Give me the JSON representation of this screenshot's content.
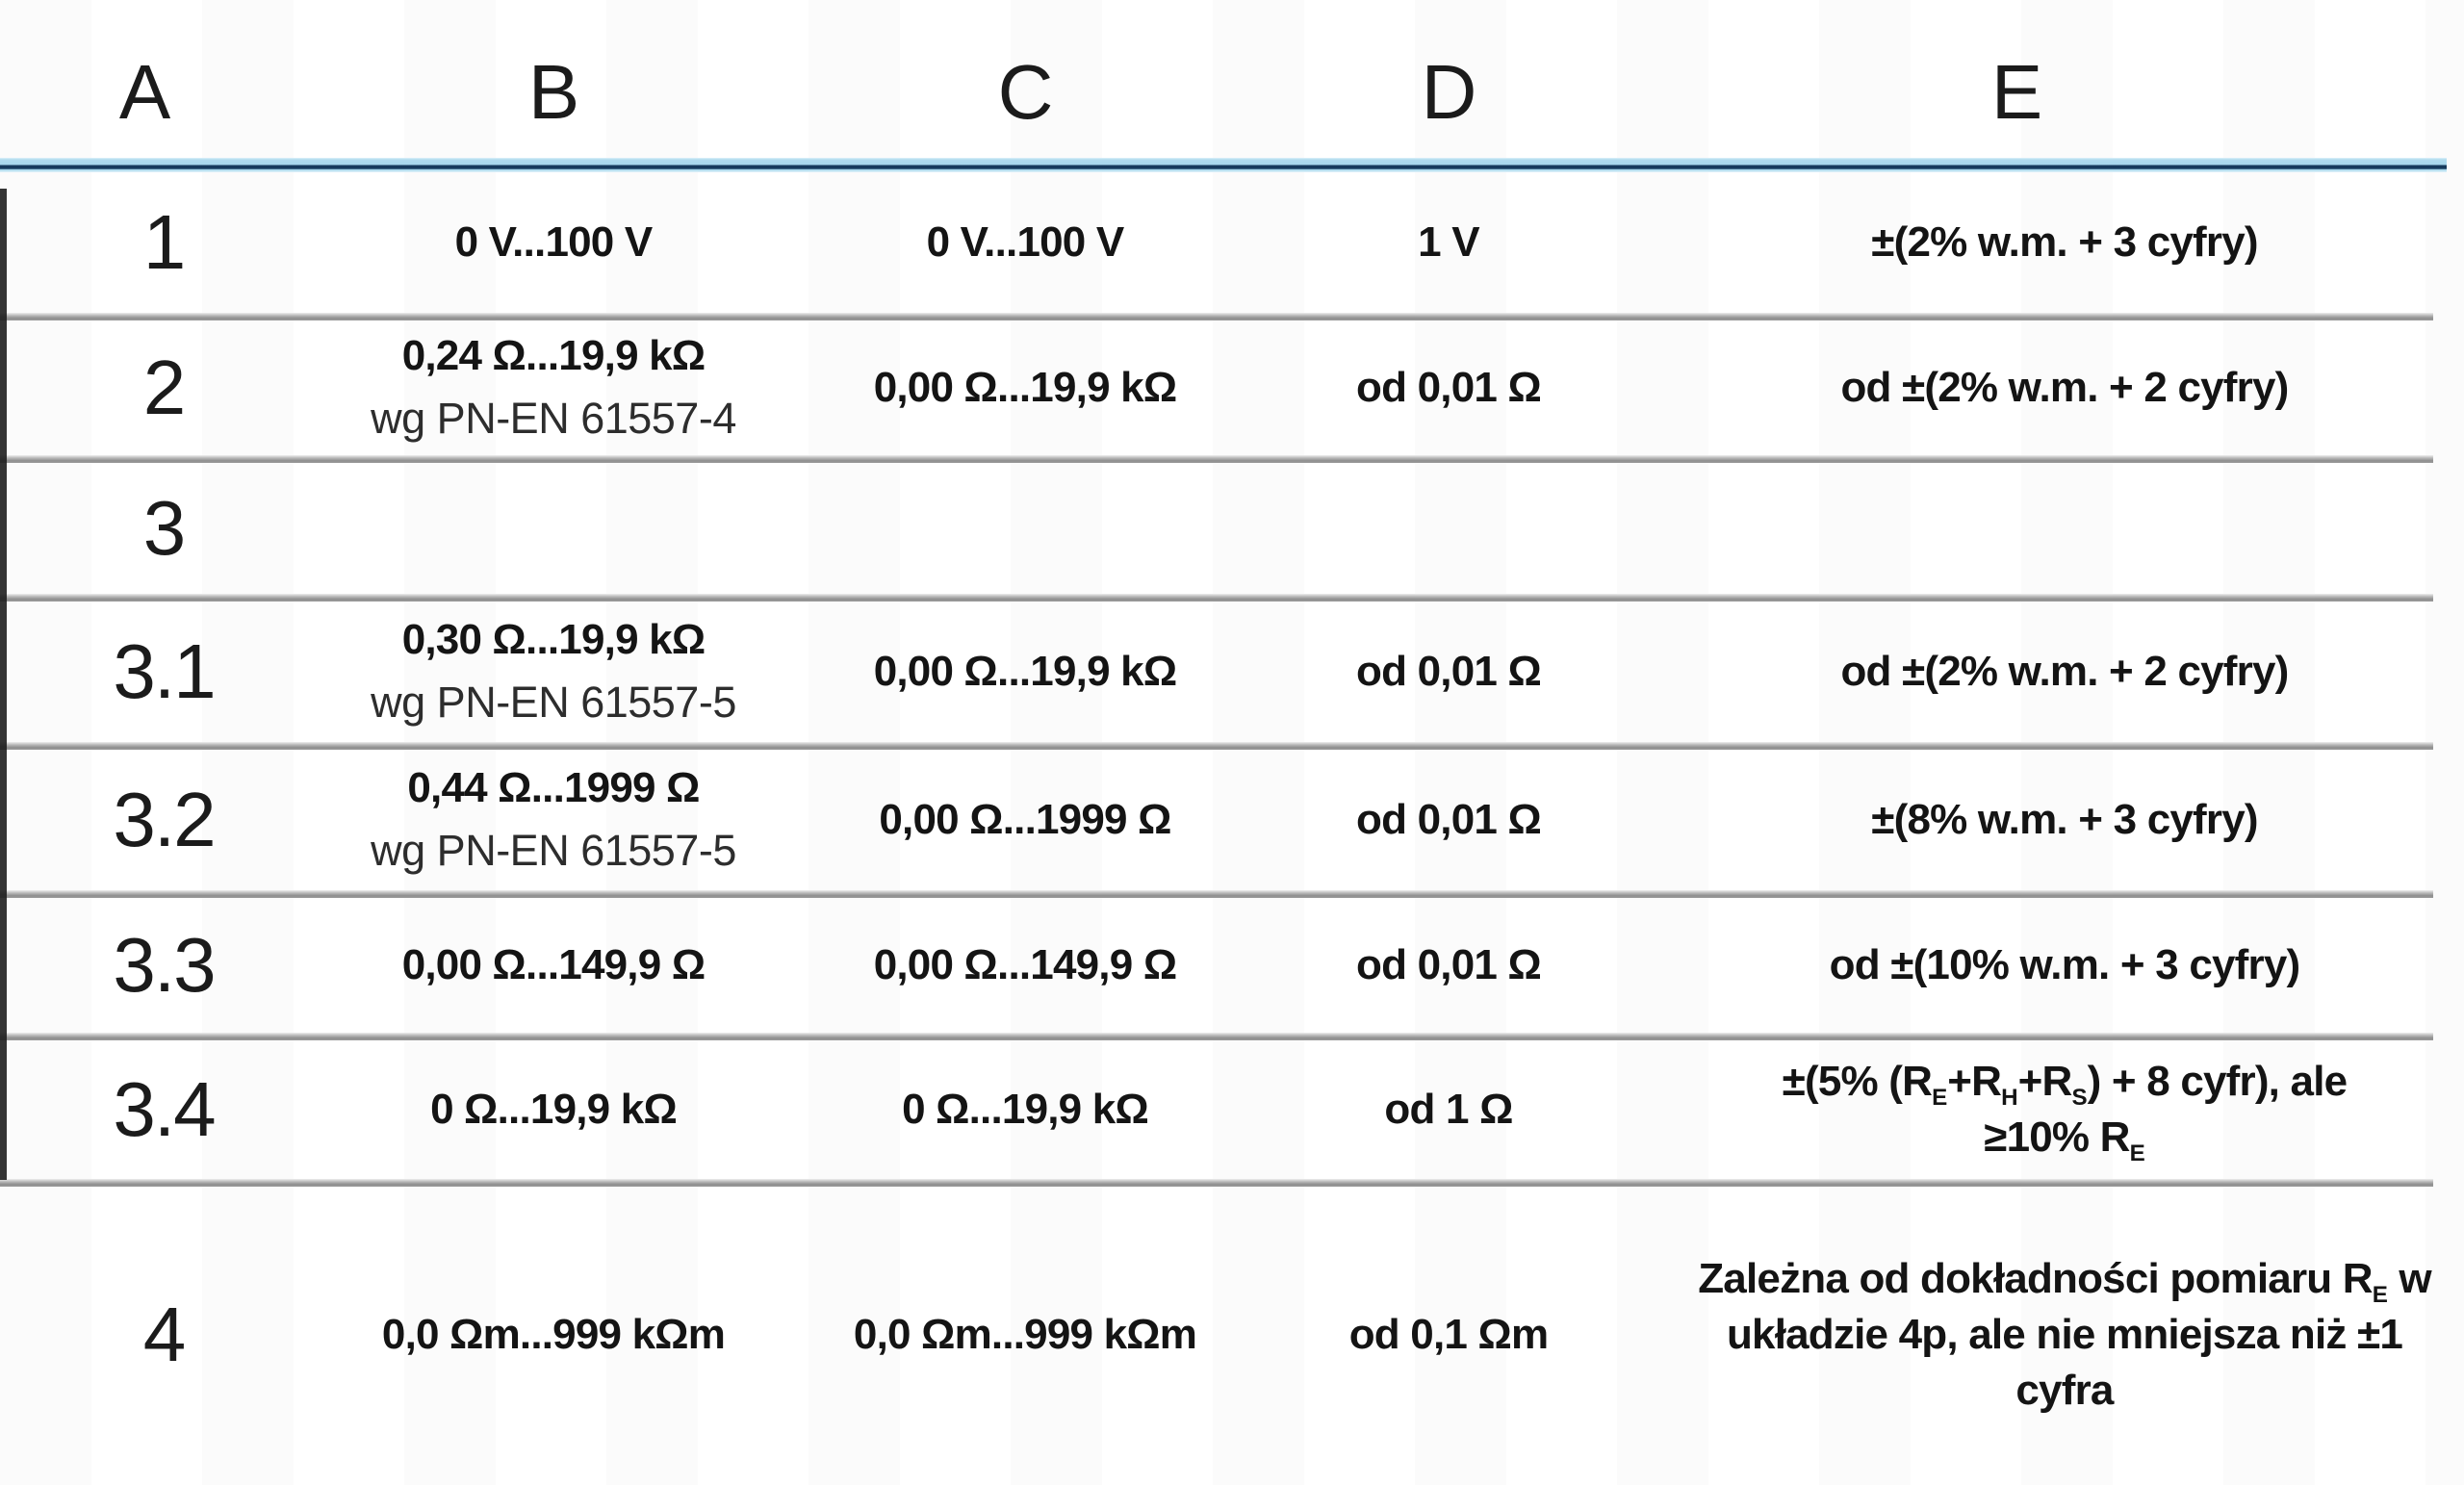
{
  "header": {
    "cols": [
      "A",
      "B",
      "C",
      "D",
      "E"
    ]
  },
  "colors": {
    "header_rule_light_blue": "#a6d6ec",
    "header_rule_navy": "#16395a",
    "row_rule_gray": "#8f8f8f",
    "text": "#141414"
  },
  "rows": [
    {
      "id": "1",
      "b1": "0 V...100 V",
      "c": "0 V...100 V",
      "d": "1 V",
      "e1": "±(2% w.m. + 3 cyfry)"
    },
    {
      "id": "2",
      "b1": "0,24 Ω...19,9 kΩ",
      "b2": "wg PN-EN 61557-4",
      "c": "0,00 Ω...19,9 kΩ",
      "d": "od 0,01 Ω",
      "e1": "od ±(2% w.m. + 2 cyfry)"
    },
    {
      "id": "3",
      "b1": "",
      "c": "",
      "d": "",
      "e1": ""
    },
    {
      "id": "3.1",
      "b1": "0,30 Ω...19,9 kΩ",
      "b2": "wg PN-EN 61557-5",
      "c": "0,00 Ω...19,9 kΩ",
      "d": "od 0,01 Ω",
      "e1": "od ±(2% w.m. + 2 cyfry)"
    },
    {
      "id": "3.2",
      "b1": "0,44 Ω...1999 Ω",
      "b2": "wg PN-EN 61557-5",
      "c": "0,00 Ω...1999 Ω",
      "d": "od 0,01 Ω",
      "e1": "±(8% w.m. + 3 cyfry)"
    },
    {
      "id": "3.3",
      "b1": "0,00 Ω...149,9 Ω",
      "c": "0,00 Ω...149,9 Ω",
      "d": "od 0,01 Ω",
      "e1": "od ±(10% w.m. + 3 cyfry)"
    },
    {
      "id": "3.4",
      "b1": "0 Ω...19,9 kΩ",
      "c": "0 Ω...19,9 kΩ",
      "d": "od 1 Ω",
      "e": {
        "p1": "±(5% (R",
        "s1": "E",
        "p2": "+R",
        "s2": "H",
        "p3": "+R",
        "s3": "S",
        "p4": ") + 8 cyfr), ale",
        "l2a": "≥10% R",
        "l2b": "E"
      }
    },
    {
      "id": "4",
      "b1": "0,0 Ωm...999 kΩm",
      "c": "0,0 Ωm...999 kΩm",
      "d": "od 0,1 Ωm",
      "e": {
        "p1": "Zależna od dokładności pomiaru R",
        "s1": "E",
        "p2": " w układzie 4p, ale nie mniejsza niż ±1 cyfra"
      }
    }
  ]
}
